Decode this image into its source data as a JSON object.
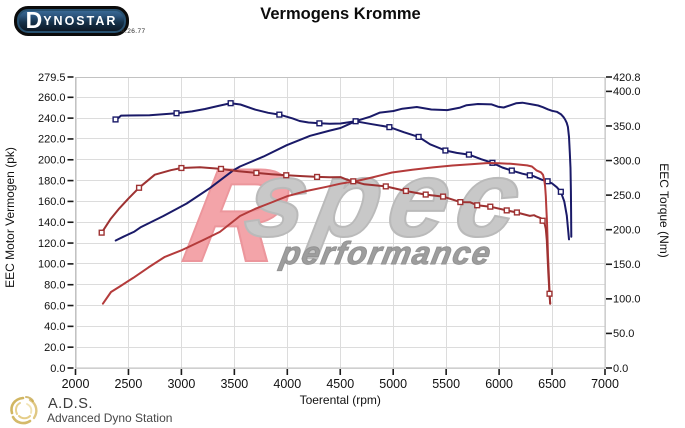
{
  "header": {
    "logo_d": "D",
    "logo_rest": "YNOSTAR",
    "logo_version": "4.26.77"
  },
  "watermark": {
    "r": "R",
    "spec": "spec",
    "performance": "performance"
  },
  "footer": {
    "abbr": "A.D.S.",
    "name": "Advanced Dyno Station"
  },
  "chart_data": {
    "type": "line",
    "title": "Vermogens Kromme",
    "xlabel": "Toerental (rpm)",
    "ylabel_left": "EEC Motor Vermogen (pk)",
    "ylabel_right": "EEC Torque (Nm)",
    "x_range": [
      2000,
      7000
    ],
    "x_ticks": [
      2000,
      2500,
      3000,
      3500,
      4000,
      4500,
      5000,
      5500,
      6000,
      6500,
      7000
    ],
    "y_left_range": [
      0,
      279.5
    ],
    "y_left_ticks": [
      0,
      20,
      40,
      60,
      80,
      100,
      120,
      140,
      160,
      180,
      200,
      220,
      240,
      260,
      279.5
    ],
    "y_right_range": [
      0,
      420.8
    ],
    "y_right_ticks": [
      0,
      50,
      100,
      150,
      200,
      250,
      300,
      350,
      400,
      420.8
    ],
    "grid": true,
    "legend": "none",
    "colors": {
      "blue_run": "#1a1a68",
      "red_power": "#b43b3b",
      "red_torque": "#9e3232",
      "gridline": "#dcdcdc",
      "plot_border": "#c2c2c2",
      "tick": "#1a1a1a"
    },
    "series": [
      {
        "name": "power-blue",
        "label": "EEC Motor Vermogen run 1 (pk)",
        "axis": "left",
        "color": "#1a1a68",
        "marker": "none",
        "points": [
          [
            2380,
            122.5
          ],
          [
            2450,
            126
          ],
          [
            2556,
            131
          ],
          [
            2613,
            135
          ],
          [
            2830,
            146
          ],
          [
            3050,
            158
          ],
          [
            3271,
            173
          ],
          [
            3492,
            190
          ],
          [
            3553,
            193.5
          ],
          [
            3774,
            203
          ],
          [
            3994,
            214
          ],
          [
            4215,
            223
          ],
          [
            4400,
            228
          ],
          [
            4502,
            230.5
          ],
          [
            4645,
            237
          ],
          [
            4783,
            241.4
          ],
          [
            4874,
            245.3
          ],
          [
            5003,
            246.8
          ],
          [
            5086,
            249.1
          ],
          [
            5223,
            250.7
          ],
          [
            5360,
            248.3
          ],
          [
            5510,
            247.7
          ],
          [
            5632,
            250.1
          ],
          [
            5693,
            252.4
          ],
          [
            5800,
            253.6
          ],
          [
            5930,
            253.2
          ],
          [
            5990,
            251.0
          ],
          [
            6043,
            250.2
          ],
          [
            6160,
            254.2
          ],
          [
            6220,
            254.8
          ],
          [
            6310,
            253.2
          ],
          [
            6368,
            252.1
          ],
          [
            6414,
            250.5
          ],
          [
            6460,
            248.5
          ],
          [
            6500,
            247
          ],
          [
            6545,
            246.1
          ],
          [
            6584,
            243.8
          ],
          [
            6608,
            241
          ],
          [
            6623,
            238.7
          ],
          [
            6638,
            235.5
          ],
          [
            6650,
            231.6
          ],
          [
            6660,
            222
          ],
          [
            6668,
            207
          ],
          [
            6674,
            192
          ],
          [
            6678,
            170
          ],
          [
            6680,
            150
          ],
          [
            6681,
            137
          ],
          [
            6682,
            126
          ]
        ]
      },
      {
        "name": "torque-blue",
        "label": "EEC Torque run 1 (Nm)",
        "axis": "right",
        "color": "#1a1a68",
        "marker": "square",
        "marker_rpm": [
          2378,
          2954,
          3465,
          3925,
          4303,
          4645,
          4964,
          5240,
          5493,
          5715,
          5937,
          6120,
          6290,
          6458,
          6583
        ],
        "points": [
          [
            2378,
            359.4
          ],
          [
            2400,
            361
          ],
          [
            2430,
            365
          ],
          [
            2700,
            365.5
          ],
          [
            2954,
            368.4
          ],
          [
            3100,
            371
          ],
          [
            3223,
            374.5
          ],
          [
            3350,
            379
          ],
          [
            3465,
            382.9
          ],
          [
            3557,
            381.1
          ],
          [
            3700,
            373.5
          ],
          [
            3820,
            369
          ],
          [
            3925,
            366.4
          ],
          [
            4050,
            361
          ],
          [
            4116,
            357.2
          ],
          [
            4200,
            355
          ],
          [
            4303,
            353.8
          ],
          [
            4400,
            353.2
          ],
          [
            4502,
            353.6
          ],
          [
            4645,
            356.8
          ],
          [
            4800,
            352.5
          ],
          [
            4964,
            348.3
          ],
          [
            5100,
            341
          ],
          [
            5240,
            334.2
          ],
          [
            5348,
            323.5
          ],
          [
            5493,
            314.5
          ],
          [
            5600,
            311
          ],
          [
            5715,
            308.6
          ],
          [
            5830,
            302
          ],
          [
            5937,
            296.7
          ],
          [
            6030,
            290
          ],
          [
            6120,
            285.5
          ],
          [
            6220,
            281
          ],
          [
            6323,
            277.5
          ],
          [
            6400,
            272.5
          ],
          [
            6458,
            270
          ],
          [
            6500,
            267
          ],
          [
            6545,
            261.5
          ],
          [
            6583,
            254.8
          ],
          [
            6616,
            240.6
          ],
          [
            6639,
            220.2
          ],
          [
            6652,
            200
          ],
          [
            6660,
            186
          ]
        ]
      },
      {
        "name": "power-red",
        "label": "EEC Motor Vermogen run 2 (pk)",
        "axis": "left",
        "color": "#b43b3b",
        "marker": "none",
        "points": [
          [
            2259,
            61.8
          ],
          [
            2335,
            73
          ],
          [
            2424,
            78.7
          ],
          [
            2545,
            86.5
          ],
          [
            2689,
            96.6
          ],
          [
            2843,
            106.7
          ],
          [
            3009,
            113.4
          ],
          [
            3219,
            123.5
          ],
          [
            3364,
            130.7
          ],
          [
            3553,
            146
          ],
          [
            3700,
            153
          ],
          [
            3850,
            159
          ],
          [
            4000,
            165
          ],
          [
            4180,
            170
          ],
          [
            4370,
            174
          ],
          [
            4500,
            177
          ],
          [
            4651,
            179.5
          ],
          [
            4800,
            183
          ],
          [
            4989,
            187.8
          ],
          [
            5180,
            190.5
          ],
          [
            5375,
            192.7
          ],
          [
            5560,
            194.5
          ],
          [
            5733,
            195.7
          ],
          [
            5898,
            196.9
          ],
          [
            6000,
            196.6
          ],
          [
            6110,
            196.1
          ],
          [
            6264,
            194.6
          ],
          [
            6310,
            193.5
          ],
          [
            6356,
            189.6
          ],
          [
            6395,
            188
          ],
          [
            6415,
            185.6
          ],
          [
            6426,
            180.9
          ],
          [
            6434,
            174.6
          ],
          [
            6441,
            165.1
          ],
          [
            6448,
            150
          ],
          [
            6452,
            140
          ],
          [
            6456,
            128
          ],
          [
            6462,
            108
          ],
          [
            6470,
            88
          ],
          [
            6477,
            70
          ],
          [
            6483,
            61.8
          ]
        ]
      },
      {
        "name": "torque-red",
        "label": "EEC Torque run 2 (Nm)",
        "axis": "right",
        "color": "#9e3232",
        "marker": "square",
        "marker_rpm": [
          2247,
          2600,
          3000,
          3374,
          3708,
          3990,
          4281,
          4623,
          4930,
          5120,
          5307,
          5471,
          5634,
          5793,
          5917,
          6072,
          6168,
          6411,
          6476
        ],
        "points": [
          [
            2247,
            195.7
          ],
          [
            2330,
            215
          ],
          [
            2414,
            230.8
          ],
          [
            2500,
            245
          ],
          [
            2600,
            260.6
          ],
          [
            2749,
            279.5
          ],
          [
            2900,
            286
          ],
          [
            3000,
            289.2
          ],
          [
            3176,
            290.2
          ],
          [
            3374,
            287.9
          ],
          [
            3540,
            284.5
          ],
          [
            3708,
            282.1
          ],
          [
            3850,
            280.3
          ],
          [
            3994,
            278.7
          ],
          [
            4140,
            277.5
          ],
          [
            4281,
            276.3
          ],
          [
            4400,
            275.8
          ],
          [
            4502,
            276
          ],
          [
            4560,
            272.5
          ],
          [
            4623,
            270
          ],
          [
            4728,
            265.6
          ],
          [
            4930,
            262.6
          ],
          [
            5120,
            256
          ],
          [
            5307,
            250.8
          ],
          [
            5471,
            247.9
          ],
          [
            5634,
            239.9
          ],
          [
            5725,
            239.7
          ],
          [
            5793,
            235.3
          ],
          [
            5917,
            233.3
          ],
          [
            6072,
            227.9
          ],
          [
            6168,
            224.9
          ],
          [
            6290,
            220
          ],
          [
            6330,
            221
          ],
          [
            6356,
            219
          ],
          [
            6395,
            216.6
          ],
          [
            6411,
            213
          ],
          [
            6431,
            208.4
          ],
          [
            6441,
            201.1
          ],
          [
            6450,
            185
          ],
          [
            6458,
            160
          ],
          [
            6465,
            138
          ],
          [
            6471,
            120
          ],
          [
            6476,
            107.4
          ],
          [
            6483,
            93
          ]
        ]
      }
    ]
  }
}
